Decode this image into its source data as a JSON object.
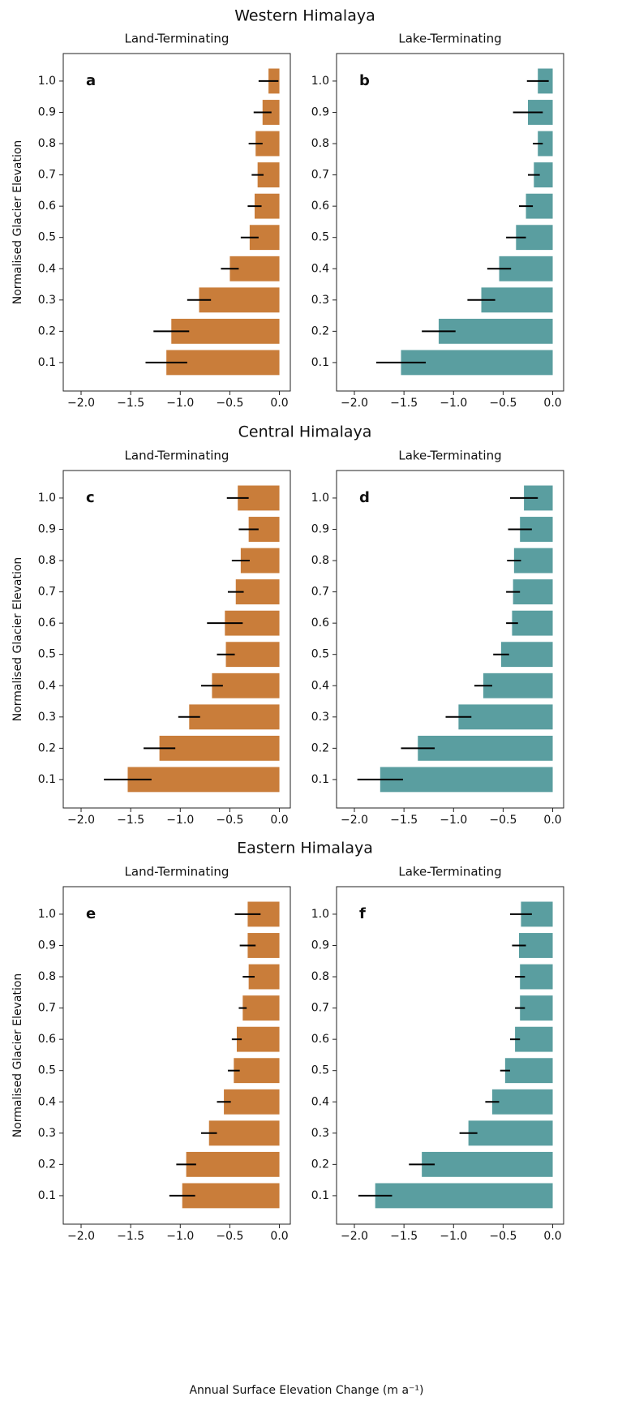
{
  "suptitles": [
    "Western Himalaya",
    "Central Himalaya",
    "Eastern Himalaya"
  ],
  "xlabel": "Annual Surface Elevation Change (m a⁻¹)",
  "chart_data": [
    {
      "type": "barh",
      "title": "Land-Terminating",
      "label": "a",
      "ylabel": "Normalised Glacier Elevation",
      "categories": [
        "0.1",
        "0.2",
        "0.3",
        "0.4",
        "0.5",
        "0.6",
        "0.7",
        "0.8",
        "0.9",
        "1.0"
      ],
      "values": [
        -1.14,
        -1.09,
        -0.81,
        -0.5,
        -0.3,
        -0.25,
        -0.22,
        -0.24,
        -0.17,
        -0.11
      ],
      "errors": [
        0.21,
        0.18,
        0.12,
        0.09,
        0.09,
        0.07,
        0.06,
        0.07,
        0.09,
        0.1
      ],
      "color": "#c97d3a",
      "xlim": [
        -2.18,
        0.11
      ],
      "xticks": [
        {
          "value": -2,
          "label": "−2.0"
        },
        {
          "value": -1.5,
          "label": "−1.5"
        },
        {
          "value": -1,
          "label": "−1.0"
        },
        {
          "value": -0.5,
          "label": "−0.5"
        },
        {
          "value": 0,
          "label": "0.0"
        }
      ]
    },
    {
      "type": "barh",
      "title": "Lake-Terminating",
      "label": "b",
      "categories": [
        "0.1",
        "0.2",
        "0.3",
        "0.4",
        "0.5",
        "0.6",
        "0.7",
        "0.8",
        "0.9",
        "1.0"
      ],
      "values": [
        -1.53,
        -1.15,
        -0.72,
        -0.54,
        -0.37,
        -0.27,
        -0.19,
        -0.15,
        -0.25,
        -0.15
      ],
      "errors": [
        0.25,
        0.17,
        0.14,
        0.12,
        0.1,
        0.07,
        0.06,
        0.05,
        0.15,
        0.11
      ],
      "color": "#5a9ea0",
      "xlim": [
        -2.18,
        0.11
      ],
      "xticks": [
        {
          "value": -2,
          "label": "−2.0"
        },
        {
          "value": -1.5,
          "label": "−1.5"
        },
        {
          "value": -1,
          "label": "−1.0"
        },
        {
          "value": -0.5,
          "label": "−0.5"
        },
        {
          "value": 0,
          "label": "0.0"
        }
      ]
    },
    {
      "type": "barh",
      "title": "Land-Terminating",
      "label": "c",
      "ylabel": "Normalised Glacier Elevation",
      "categories": [
        "0.1",
        "0.2",
        "0.3",
        "0.4",
        "0.5",
        "0.6",
        "0.7",
        "0.8",
        "0.9",
        "1.0"
      ],
      "values": [
        -1.53,
        -1.21,
        -0.91,
        -0.68,
        -0.54,
        -0.55,
        -0.44,
        -0.39,
        -0.31,
        -0.42
      ],
      "errors": [
        0.24,
        0.16,
        0.11,
        0.11,
        0.09,
        0.18,
        0.08,
        0.09,
        0.1,
        0.11
      ],
      "color": "#c97d3a",
      "xlim": [
        -2.18,
        0.11
      ],
      "xticks": [
        {
          "value": -2,
          "label": "−2.0"
        },
        {
          "value": -1.5,
          "label": "−1.5"
        },
        {
          "value": -1,
          "label": "−1.0"
        },
        {
          "value": -0.5,
          "label": "−0.5"
        },
        {
          "value": 0,
          "label": "0.0"
        }
      ]
    },
    {
      "type": "barh",
      "title": "Lake-Terminating",
      "label": "d",
      "categories": [
        "0.1",
        "0.2",
        "0.3",
        "0.4",
        "0.5",
        "0.6",
        "0.7",
        "0.8",
        "0.9",
        "1.0"
      ],
      "values": [
        -1.74,
        -1.36,
        -0.95,
        -0.7,
        -0.52,
        -0.41,
        -0.4,
        -0.39,
        -0.33,
        -0.29
      ],
      "errors": [
        0.23,
        0.17,
        0.13,
        0.09,
        0.08,
        0.06,
        0.07,
        0.07,
        0.12,
        0.14
      ],
      "color": "#5a9ea0",
      "xlim": [
        -2.18,
        0.11
      ],
      "xticks": [
        {
          "value": -2,
          "label": "−2.0"
        },
        {
          "value": -1.5,
          "label": "−1.5"
        },
        {
          "value": -1,
          "label": "−1.0"
        },
        {
          "value": -0.5,
          "label": "−0.5"
        },
        {
          "value": 0,
          "label": "0.0"
        }
      ]
    },
    {
      "type": "barh",
      "title": "Land-Terminating",
      "label": "e",
      "ylabel": "Normalised Glacier Elevation",
      "categories": [
        "0.1",
        "0.2",
        "0.3",
        "0.4",
        "0.5",
        "0.6",
        "0.7",
        "0.8",
        "0.9",
        "1.0"
      ],
      "values": [
        -0.98,
        -0.94,
        -0.71,
        -0.56,
        -0.46,
        -0.43,
        -0.37,
        -0.31,
        -0.32,
        -0.32
      ],
      "errors": [
        0.13,
        0.1,
        0.08,
        0.07,
        0.06,
        0.05,
        0.04,
        0.06,
        0.08,
        0.13
      ],
      "color": "#c97d3a",
      "xlim": [
        -2.18,
        0.11
      ],
      "xticks": [
        {
          "value": -2,
          "label": "−2.0"
        },
        {
          "value": -1.5,
          "label": "−1.5"
        },
        {
          "value": -1,
          "label": "−1.0"
        },
        {
          "value": -0.5,
          "label": "−0.5"
        },
        {
          "value": 0,
          "label": "0.0"
        }
      ]
    },
    {
      "type": "barh",
      "title": "Lake-Terminating",
      "label": "f",
      "categories": [
        "0.1",
        "0.2",
        "0.3",
        "0.4",
        "0.5",
        "0.6",
        "0.7",
        "0.8",
        "0.9",
        "1.0"
      ],
      "values": [
        -1.79,
        -1.32,
        -0.85,
        -0.61,
        -0.48,
        -0.38,
        -0.33,
        -0.33,
        -0.34,
        -0.32
      ],
      "errors": [
        0.17,
        0.13,
        0.09,
        0.07,
        0.05,
        0.05,
        0.05,
        0.05,
        0.07,
        0.11
      ],
      "color": "#5a9ea0",
      "xlim": [
        -2.18,
        0.11
      ],
      "xticks": [
        {
          "value": -2,
          "label": "−2.0"
        },
        {
          "value": -1.5,
          "label": "−1.5"
        },
        {
          "value": -1,
          "label": "−1.0"
        },
        {
          "value": -0.5,
          "label": "−0.5"
        },
        {
          "value": 0,
          "label": "0.0"
        }
      ]
    }
  ]
}
